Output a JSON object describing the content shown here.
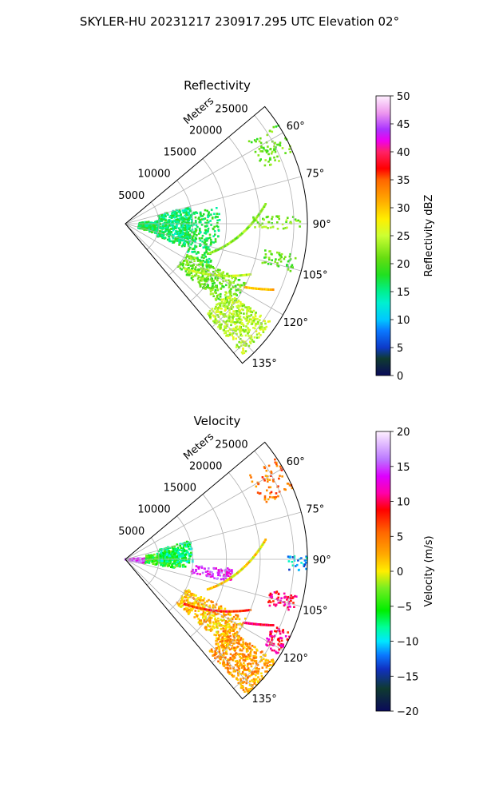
{
  "figure": {
    "suptitle": "SKYLER-HU  20231217  230917.295 UTC Elevation 02°"
  },
  "chart_data": [
    {
      "type": "heatmap",
      "projection": "polar-sector",
      "title": "Reflectivity",
      "radial_label": "Meters",
      "radial_ticks": [
        "5000",
        "10000",
        "15000",
        "20000",
        "25000"
      ],
      "radial_max_m": 27000,
      "angle_range_deg": [
        50,
        140
      ],
      "angle_ticks": [
        "60°",
        "75°",
        "90°",
        "105°",
        "120°",
        "135°"
      ],
      "grid": true,
      "colorbar": {
        "label": "Reflectivity dBZ",
        "range": [
          0,
          50
        ],
        "ticks": [
          "0",
          "5",
          "10",
          "15",
          "20",
          "25",
          "30",
          "35",
          "40",
          "45",
          "50"
        ],
        "stops": [
          [
            0,
            "#0a0a5a"
          ],
          [
            0.06,
            "#0f3a30"
          ],
          [
            0.1,
            "#0d3ac8"
          ],
          [
            0.16,
            "#0a78ff"
          ],
          [
            0.2,
            "#00c8ff"
          ],
          [
            0.26,
            "#00f0d0"
          ],
          [
            0.3,
            "#00f090"
          ],
          [
            0.36,
            "#20e020"
          ],
          [
            0.42,
            "#66dd11"
          ],
          [
            0.5,
            "#ccff33"
          ],
          [
            0.56,
            "#ffee00"
          ],
          [
            0.62,
            "#ffb000"
          ],
          [
            0.7,
            "#ff6600"
          ],
          [
            0.74,
            "#ff0000"
          ],
          [
            0.8,
            "#ff2266"
          ],
          [
            0.84,
            "#ee00ee"
          ],
          [
            0.88,
            "#aa33ff"
          ],
          [
            0.94,
            "#ee99ee"
          ],
          [
            1,
            "#fff0ff"
          ]
        ]
      },
      "echo_regions": [
        {
          "r": [
            2000,
            5000
          ],
          "theta": [
            85,
            108
          ],
          "value": 17,
          "density": 0.6
        },
        {
          "r": [
            5000,
            10000
          ],
          "theta": [
            75,
            112
          ],
          "value": 16,
          "density": 0.55
        },
        {
          "r": [
            10000,
            14000
          ],
          "theta": [
            80,
            118
          ],
          "value": 17,
          "density": 0.28
        },
        {
          "r": [
            10000,
            20000
          ],
          "theta": [
            116,
            130
          ],
          "value": 21,
          "density": 0.5
        },
        {
          "r": [
            18000,
            26000
          ],
          "theta": [
            124,
            138
          ],
          "value": 24,
          "density": 0.75
        },
        {
          "r": [
            22000,
            27000
          ],
          "theta": [
            56,
            68
          ],
          "value": 21,
          "density": 0.25
        },
        {
          "r": [
            19000,
            26000
          ],
          "theta": [
            87,
            92
          ],
          "value": 22,
          "density": 0.3
        },
        {
          "r": [
            21000,
            26000
          ],
          "theta": [
            100,
            106
          ],
          "value": 20,
          "density": 0.35
        }
      ],
      "lines": [
        {
          "from": [
            11000,
            127
          ],
          "to": [
            20000,
            112
          ],
          "value": 24
        },
        {
          "from": [
            13000,
            110
          ],
          "to": [
            21000,
            82
          ],
          "value": 22
        },
        {
          "from": [
            20000,
            118
          ],
          "to": [
            24000,
            114
          ],
          "value": 30
        }
      ]
    },
    {
      "type": "heatmap",
      "projection": "polar-sector",
      "title": "Velocity",
      "radial_label": "Meters",
      "radial_ticks": [
        "5000",
        "10000",
        "15000",
        "20000",
        "25000"
      ],
      "radial_max_m": 27000,
      "angle_range_deg": [
        50,
        140
      ],
      "angle_ticks": [
        "60°",
        "75°",
        "90°",
        "105°",
        "120°",
        "135°"
      ],
      "grid": true,
      "colorbar": {
        "label": "Velocity (m/s)",
        "range": [
          -20,
          20
        ],
        "ticks": [
          "−20",
          "−15",
          "−10",
          "−5",
          "0",
          "5",
          "10",
          "15",
          "20"
        ],
        "stops": [
          [
            0,
            "#0a0a5a"
          ],
          [
            0.08,
            "#0f3a30"
          ],
          [
            0.15,
            "#1030c0"
          ],
          [
            0.2,
            "#0a78ff"
          ],
          [
            0.25,
            "#00e8ff"
          ],
          [
            0.3,
            "#00ff99"
          ],
          [
            0.36,
            "#00ee00"
          ],
          [
            0.44,
            "#77ee22"
          ],
          [
            0.5,
            "#ffee00"
          ],
          [
            0.56,
            "#ffaa00"
          ],
          [
            0.64,
            "#ff6600"
          ],
          [
            0.72,
            "#ff0000"
          ],
          [
            0.78,
            "#ff00aa"
          ],
          [
            0.84,
            "#dd00ff"
          ],
          [
            0.9,
            "#bb77ff"
          ],
          [
            1,
            "#fff0ff"
          ]
        ]
      },
      "echo_regions": [
        {
          "r": [
            0,
            3000
          ],
          "theta": [
            85,
            103
          ],
          "value": 15,
          "density": 0.7
        },
        {
          "r": [
            3000,
            9000
          ],
          "theta": [
            80,
            100
          ],
          "value": -5,
          "density": 0.4
        },
        {
          "r": [
            5000,
            10000
          ],
          "theta": [
            74,
            93
          ],
          "value": -7,
          "density": 0.5
        },
        {
          "r": [
            10000,
            16000
          ],
          "theta": [
            95,
            102
          ],
          "value": 14,
          "density": 0.45
        },
        {
          "r": [
            10000,
            20000
          ],
          "theta": [
            116,
            131
          ],
          "value": 2,
          "density": 0.55
        },
        {
          "r": [
            18000,
            27000
          ],
          "theta": [
            124,
            138
          ],
          "value": 3,
          "density": 0.8
        },
        {
          "r": [
            24000,
            27000
          ],
          "theta": [
            114,
            122
          ],
          "value": 10,
          "density": 0.6
        },
        {
          "r": [
            22000,
            26000
          ],
          "theta": [
            102,
            108
          ],
          "value": 10,
          "density": 0.5
        },
        {
          "r": [
            24000,
            27000
          ],
          "theta": [
            88,
            94
          ],
          "value": -11,
          "density": 0.35
        },
        {
          "r": [
            22000,
            27000
          ],
          "theta": [
            56,
            68
          ],
          "value": 5,
          "density": 0.25
        }
      ],
      "lines": [
        {
          "from": [
            11000,
            127
          ],
          "to": [
            20000,
            112
          ],
          "value": 8
        },
        {
          "from": [
            13000,
            110
          ],
          "to": [
            21000,
            82
          ],
          "value": 1
        },
        {
          "from": [
            20000,
            118
          ],
          "to": [
            24000,
            114
          ],
          "value": 10
        }
      ]
    }
  ]
}
